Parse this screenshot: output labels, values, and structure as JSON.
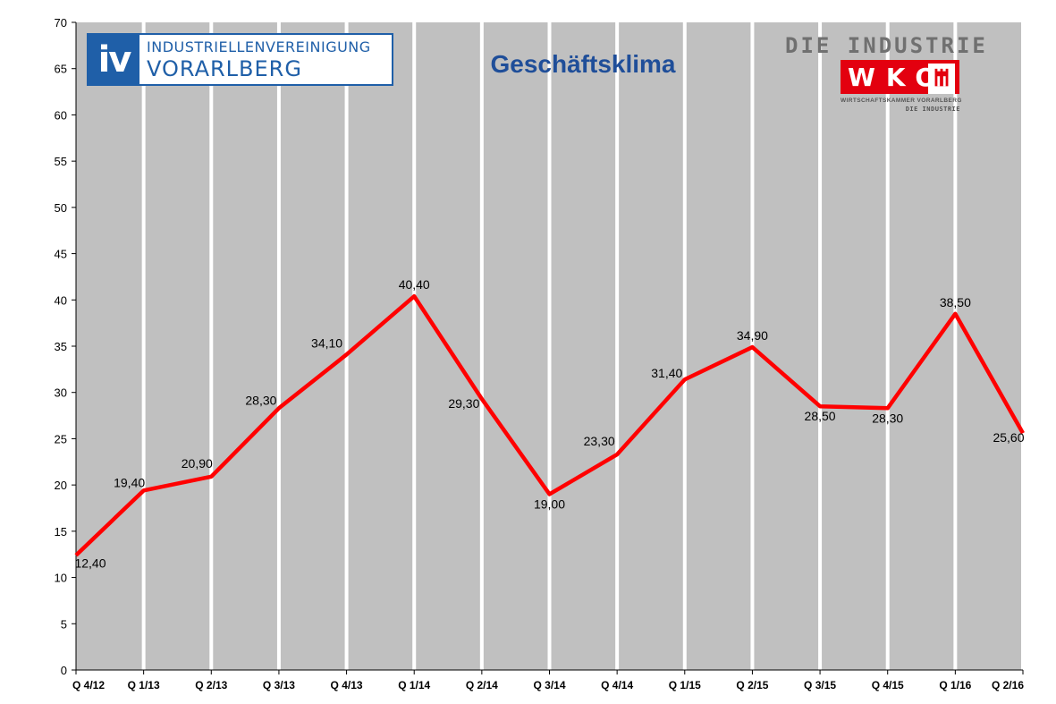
{
  "logos": {
    "iv": {
      "mark": "iv",
      "line1": "INDUSTRIELLENVEREINIGUNG",
      "line2": "VORARLBERG",
      "color": "#1f5fa8"
    },
    "wko": {
      "heading": "DIE INDUSTRIE",
      "mark": "WKO",
      "sub1": "WIRTSCHAFTSKAMMER VORARLBERG",
      "sub2": "DIE INDUSTRIE",
      "color": "#e3000f"
    }
  },
  "chart_data": {
    "type": "line",
    "title": "Geschäftsklima",
    "categories": [
      "Q 4/12",
      "Q 1/13",
      "Q 2/13",
      "Q 3/13",
      "Q 4/13",
      "Q 1/14",
      "Q 2/14",
      "Q 3/14",
      "Q 4/14",
      "Q 1/15",
      "Q 2/15",
      "Q 3/15",
      "Q 4/15",
      "Q 1/16",
      "Q 2/16"
    ],
    "series": [
      {
        "values": [
          12.4,
          19.4,
          20.9,
          28.3,
          34.1,
          40.4,
          29.3,
          19.0,
          23.3,
          31.4,
          34.9,
          28.5,
          28.3,
          38.5,
          25.6
        ],
        "labels": [
          "12,40",
          "19,40",
          "20,90",
          "28,30",
          "34,10",
          "40,40",
          "29,30",
          "19,00",
          "23,30",
          "31,40",
          "34,90",
          "28,50",
          "28,30",
          "38,50",
          "25,60"
        ],
        "color": "#ff0000"
      }
    ],
    "ylim": [
      0,
      70
    ],
    "yticks": [
      0,
      5,
      10,
      15,
      20,
      25,
      30,
      35,
      40,
      45,
      50,
      55,
      60,
      65,
      70
    ],
    "grid": "vertical",
    "plot_background": "#c0c0c0",
    "grid_color": "#ffffff"
  }
}
